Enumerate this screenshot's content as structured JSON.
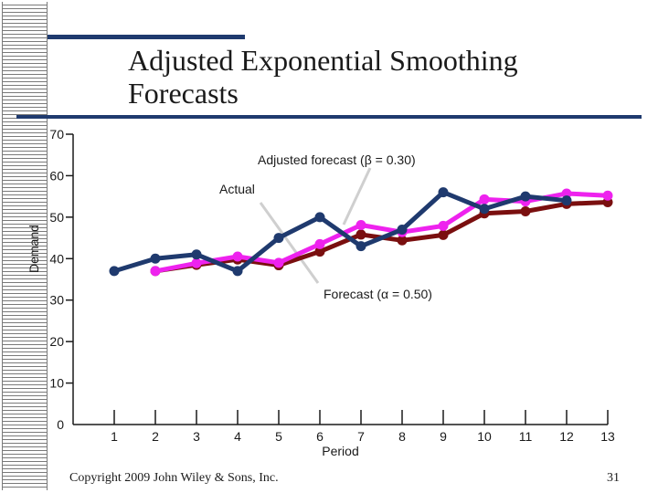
{
  "slide": {
    "title_line1": "Adjusted Exponential Smoothing",
    "title_line2": "Forecasts",
    "copyright": "Copyright 2009 John Wiley & Sons, Inc.",
    "page_number": "31"
  },
  "chart_data": {
    "type": "line",
    "title": "Adjusted Exponential Smoothing Forecasts",
    "xlabel": "Period",
    "ylabel": "Demand",
    "xlim": [
      0,
      13
    ],
    "ylim": [
      0,
      70
    ],
    "x_ticks": [
      "1",
      "2",
      "3",
      "4",
      "5",
      "6",
      "7",
      "8",
      "9",
      "10",
      "11",
      "12",
      "13"
    ],
    "y_ticks": [
      "0",
      "10",
      "20",
      "30",
      "40",
      "50",
      "60",
      "70"
    ],
    "series": [
      {
        "name": "Actual",
        "color": "#1f3a6e",
        "x": [
          1,
          2,
          3,
          4,
          5,
          6,
          7,
          8,
          9,
          10,
          11,
          12
        ],
        "values": [
          37,
          40,
          41,
          37,
          45,
          50,
          43,
          47,
          56,
          52,
          55,
          54
        ]
      },
      {
        "name": "Forecast (α = 0.50)",
        "color": "#7a0f0f",
        "x": [
          2,
          3,
          4,
          5,
          6,
          7,
          8,
          9,
          10,
          11,
          12,
          13
        ],
        "values": [
          37.0,
          38.5,
          39.8,
          38.4,
          41.7,
          45.8,
          44.4,
          45.7,
          50.9,
          51.4,
          53.2,
          53.6
        ]
      },
      {
        "name": "Adjusted forecast (β = 0.30)",
        "color": "#ee22ee",
        "x": [
          2,
          3,
          4,
          5,
          6,
          7,
          8,
          9,
          10,
          11,
          12,
          13
        ],
        "values": [
          37.0,
          38.9,
          40.5,
          39.0,
          43.5,
          48.1,
          46.4,
          47.9,
          54.3,
          53.8,
          55.7,
          55.2
        ]
      }
    ],
    "annotations": [
      {
        "text": "Adjusted forecast (β = 0.30)",
        "points_to": "Adjusted forecast (β = 0.30)"
      },
      {
        "text": "Actual",
        "points_to": "Actual"
      },
      {
        "text": "Forecast (α = 0.50)",
        "points_to": "Forecast (α = 0.50)"
      }
    ]
  }
}
